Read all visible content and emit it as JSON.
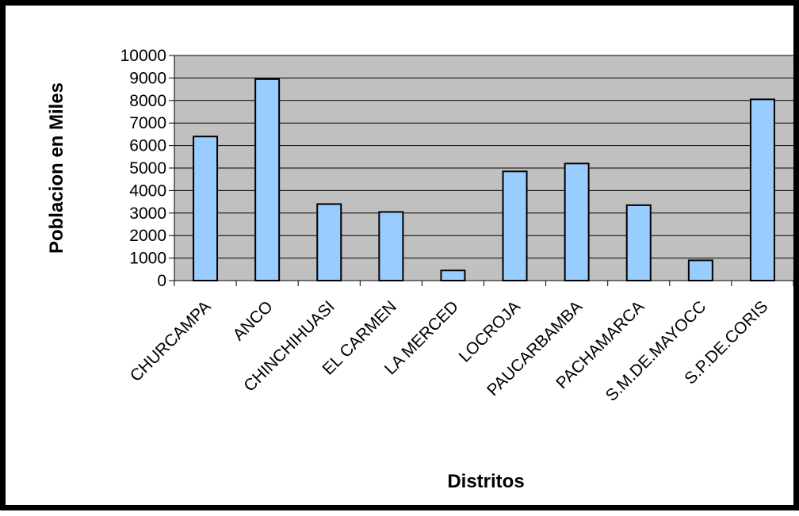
{
  "chart_data": {
    "type": "bar",
    "title": "",
    "xlabel": "Distritos",
    "ylabel": "Poblacion en Miles",
    "categories": [
      "CHURCAMPA",
      "ANCO",
      "CHINCHIHUASI",
      "EL CARMEN",
      "LA MERCED",
      "LOCROJA",
      "PAUCARBAMBA",
      "PACHAMARCA",
      "S.M.DE.MAYOCC",
      "S.P.DE.CORIS"
    ],
    "values": [
      6400,
      8950,
      3400,
      3050,
      450,
      4850,
      5200,
      3350,
      900,
      8050
    ],
    "ylim": [
      0,
      10000
    ],
    "yticks": [
      "0",
      "1000",
      "2000",
      "3000",
      "4000",
      "5000",
      "6000",
      "7000",
      "8000",
      "9000",
      "10000"
    ],
    "grid": true,
    "legend": "none",
    "colors": {
      "bar": "#99ccff",
      "plot_bg": "#c0c0c0",
      "frame": "#000000"
    }
  }
}
